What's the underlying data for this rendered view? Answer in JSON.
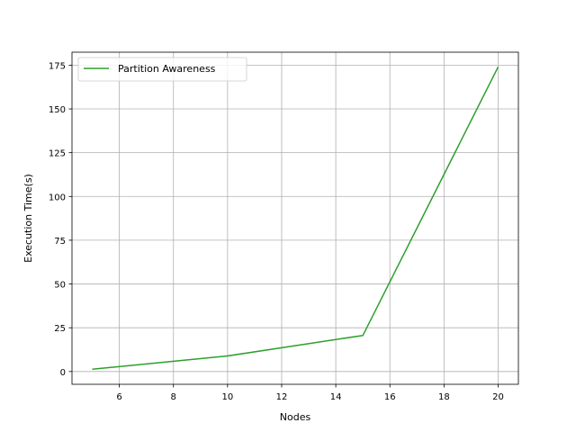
{
  "chart_data": {
    "type": "line",
    "xlabel": "Nodes",
    "ylabel": "Execution Time(s)",
    "xlim": [
      4.25,
      20.75
    ],
    "ylim": [
      -7.3,
      182.4
    ],
    "xticks": [
      "6",
      "8",
      "10",
      "12",
      "14",
      "16",
      "18",
      "20"
    ],
    "yticks": [
      "0",
      "25",
      "50",
      "75",
      "100",
      "125",
      "150",
      "175"
    ],
    "grid": true,
    "legend": "top-left",
    "series": [
      {
        "name": "Partition Awareness",
        "color": "#2ca02c",
        "x": [
          5,
          10,
          15,
          20
        ],
        "y": [
          1.3,
          8.9,
          20.6,
          174
        ]
      }
    ]
  }
}
